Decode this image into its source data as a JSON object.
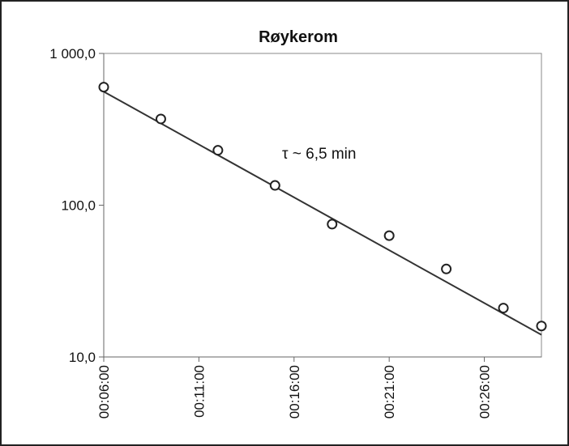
{
  "chart_data": {
    "type": "scatter",
    "title": "Røykerom",
    "xlabel": "",
    "ylabel": "",
    "y_scale": "log",
    "ylim": [
      10,
      1000
    ],
    "xlim": [
      "00:06:00",
      "00:29:00"
    ],
    "x_tick_labels": [
      "00:06:00",
      "00:11:00",
      "00:16:00",
      "00:21:00",
      "00:26:00"
    ],
    "y_tick_labels": [
      "10,0",
      "100,0",
      "1 000,0"
    ],
    "grid": false,
    "legend": "none",
    "annotation": "τ ~ 6,5 min",
    "series": [
      {
        "marker": "open-circle",
        "x": [
          "00:06:00",
          "00:09:00",
          "00:12:00",
          "00:15:00",
          "00:18:00",
          "00:21:00",
          "00:24:00",
          "00:27:00",
          "00:29:00"
        ],
        "values": [
          600,
          370,
          230,
          135,
          75,
          63,
          38,
          21,
          16
        ]
      }
    ],
    "fit_line": {
      "x": [
        "00:06:00",
        "00:29:00"
      ],
      "values": [
        560,
        14
      ]
    },
    "colors": {
      "marker": "#222222",
      "line": "#333333",
      "axis": "#666666",
      "frame": "#222222"
    }
  }
}
